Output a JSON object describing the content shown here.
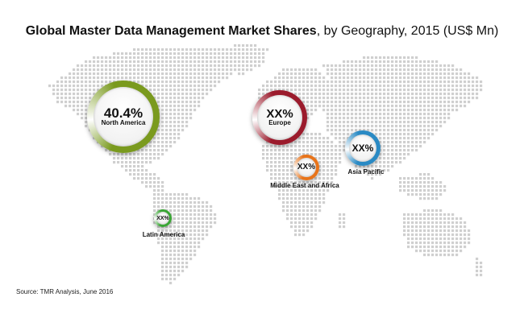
{
  "title": {
    "bold": "Global Master Data Management Market Shares",
    "rest": ", by Geography, 2015 (US$ Mn)"
  },
  "source": "Source: TMR Analysis, June 2016",
  "regions": [
    {
      "id": "north-america",
      "name": "North America",
      "value": "40.4%",
      "ring_color": "#7a9a1e"
    },
    {
      "id": "europe",
      "name": "Europe",
      "value": "XX%",
      "ring_color": "#9b1b2c"
    },
    {
      "id": "middle-east-africa",
      "name": "Middle East and Africa",
      "value": "XX%",
      "ring_color": "#e8741a"
    },
    {
      "id": "asia-pacific",
      "name": "Asia Pacific",
      "value": "XX%",
      "ring_color": "#2a8ac4"
    },
    {
      "id": "latin-america",
      "name": "Latin America",
      "value": "XX%",
      "ring_color": "#3aa635"
    }
  ]
}
